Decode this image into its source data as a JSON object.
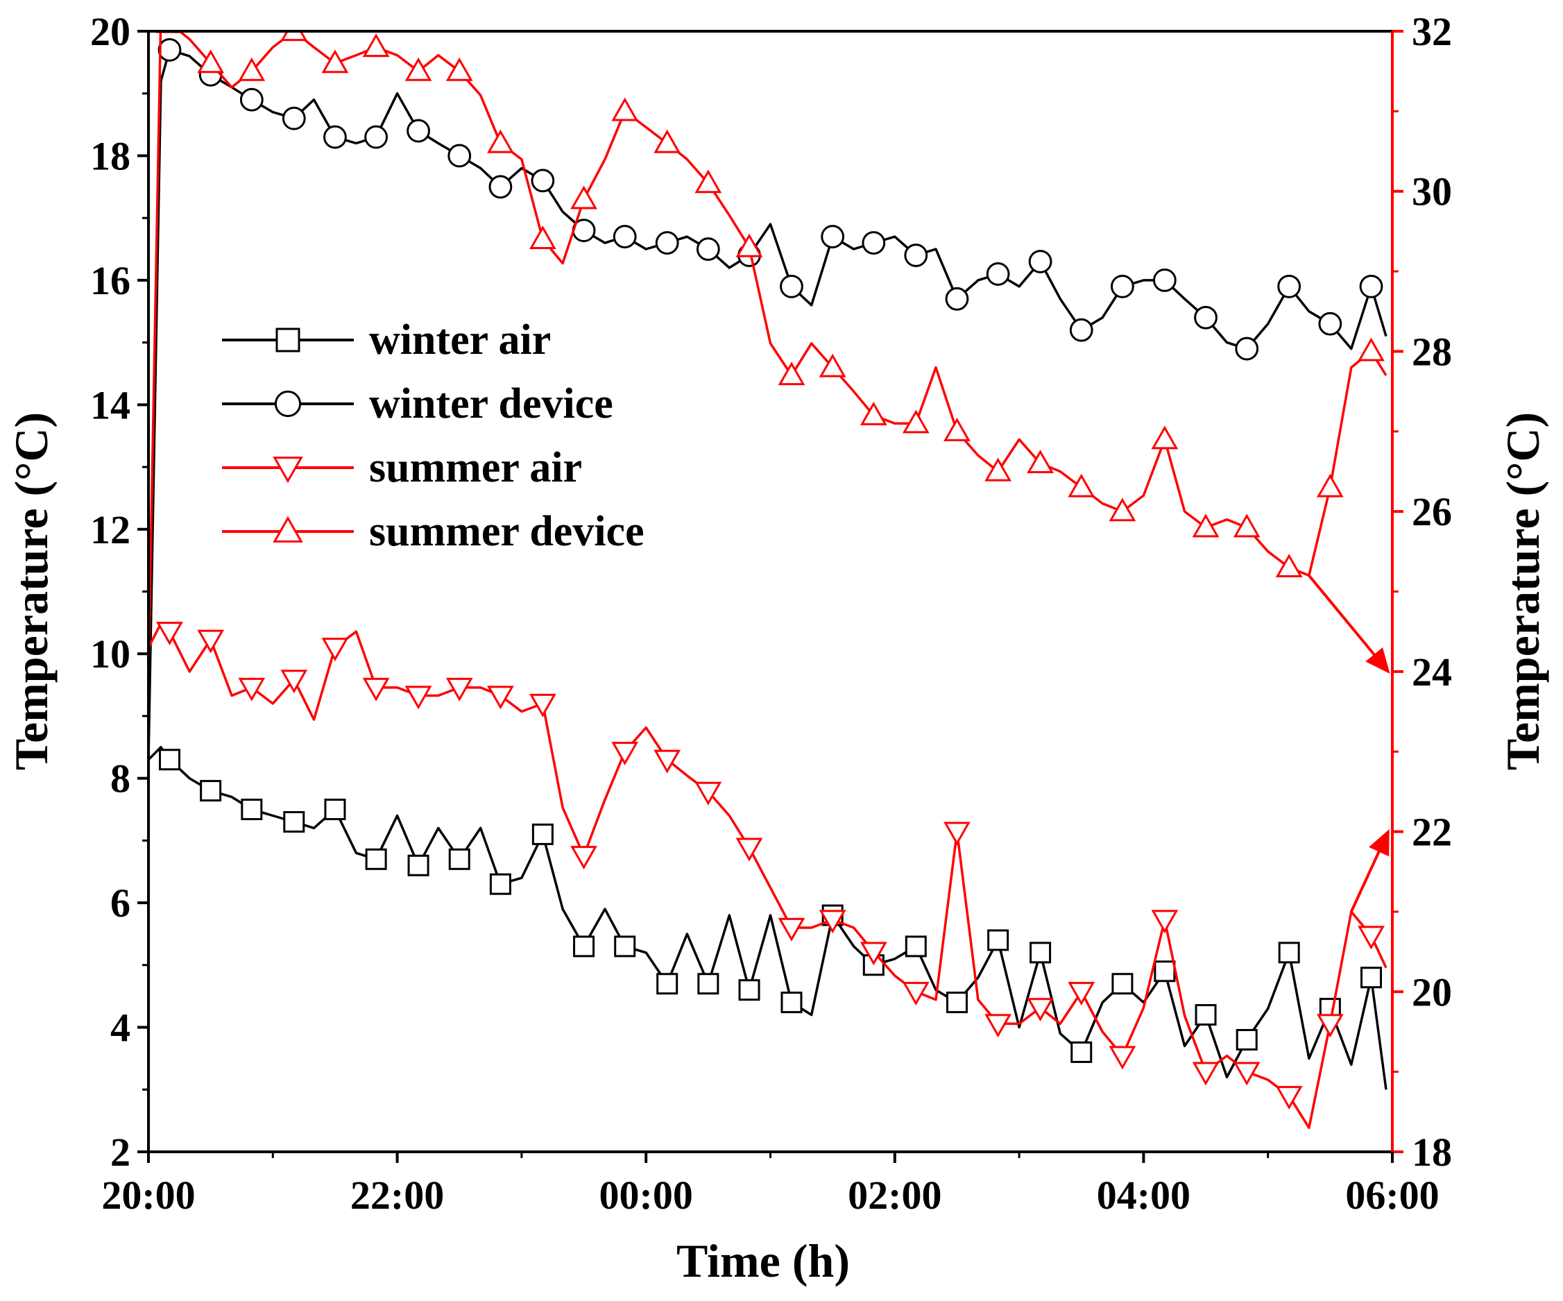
{
  "chart_data": {
    "type": "line",
    "xlabel": "Time (h)",
    "ylabel_left": "Temperature (°C)",
    "ylabel_right": "Temperature (°C)",
    "x_tick_labels": [
      "20:00",
      "22:00",
      "00:00",
      "02:00",
      "04:00",
      "06:00"
    ],
    "x_tick_hours": [
      0,
      2,
      4,
      6,
      8,
      10
    ],
    "x_range_hours": [
      0,
      10
    ],
    "y_left_range": [
      2,
      20
    ],
    "y_left_ticks": [
      2,
      4,
      6,
      8,
      10,
      12,
      14,
      16,
      18,
      20
    ],
    "y_right_range": [
      18,
      32
    ],
    "y_right_ticks": [
      18,
      20,
      22,
      24,
      26,
      28,
      30,
      32
    ],
    "colors": {
      "winter": "#000000",
      "summer": "#ff0000"
    },
    "legend": [
      {
        "label": "winter air",
        "marker": "square",
        "color": "#000000"
      },
      {
        "label": "winter device",
        "marker": "circle",
        "color": "#000000"
      },
      {
        "label": "summer air",
        "marker": "triangle-down",
        "color": "#ff0000"
      },
      {
        "label": "summer device",
        "marker": "triangle-up",
        "color": "#ff0000"
      }
    ],
    "series": [
      {
        "name": "winter air",
        "axis": "left",
        "marker": "square",
        "x": [
          0,
          0.1,
          0.17,
          0.33,
          0.5,
          0.67,
          0.83,
          1,
          1.17,
          1.33,
          1.5,
          1.67,
          1.83,
          2,
          2.17,
          2.33,
          2.5,
          2.67,
          2.83,
          3,
          3.17,
          3.33,
          3.5,
          3.67,
          3.83,
          4,
          4.17,
          4.33,
          4.5,
          4.67,
          4.83,
          5,
          5.17,
          5.33,
          5.5,
          5.67,
          5.83,
          6,
          6.17,
          6.33,
          6.5,
          6.67,
          6.83,
          7,
          7.17,
          7.33,
          7.5,
          7.67,
          7.83,
          8,
          8.17,
          8.33,
          8.5,
          8.67,
          8.83,
          9,
          9.17,
          9.33,
          9.5,
          9.67,
          9.83,
          9.95
        ],
        "y": [
          8.3,
          8.5,
          8.3,
          8.0,
          7.8,
          7.7,
          7.5,
          7.4,
          7.3,
          7.2,
          7.5,
          6.8,
          6.7,
          7.4,
          6.6,
          7.2,
          6.7,
          7.2,
          6.3,
          6.4,
          7.1,
          5.9,
          5.3,
          5.9,
          5.3,
          5.2,
          4.7,
          5.5,
          4.7,
          5.8,
          4.6,
          5.8,
          4.4,
          4.2,
          5.8,
          5.3,
          5.0,
          5.1,
          5.3,
          4.6,
          4.4,
          4.8,
          5.4,
          4.0,
          5.2,
          3.9,
          3.6,
          4.4,
          4.7,
          4.4,
          4.9,
          3.7,
          4.2,
          3.2,
          3.8,
          4.3,
          5.2,
          3.5,
          4.3,
          3.4,
          4.8,
          3.0
        ]
      },
      {
        "name": "winter device",
        "axis": "left",
        "marker": "circle",
        "x": [
          0,
          0.1,
          0.17,
          0.33,
          0.5,
          0.67,
          0.83,
          1,
          1.17,
          1.33,
          1.5,
          1.67,
          1.83,
          2,
          2.17,
          2.33,
          2.5,
          2.67,
          2.83,
          3,
          3.17,
          3.33,
          3.5,
          3.67,
          3.83,
          4,
          4.17,
          4.33,
          4.5,
          4.67,
          4.83,
          5,
          5.17,
          5.33,
          5.5,
          5.67,
          5.83,
          6,
          6.17,
          6.33,
          6.5,
          6.67,
          6.83,
          7,
          7.17,
          7.33,
          7.5,
          7.67,
          7.83,
          8,
          8.17,
          8.33,
          8.5,
          8.67,
          8.83,
          9,
          9.17,
          9.33,
          9.5,
          9.67,
          9.83,
          9.95
        ],
        "y": [
          8.3,
          19.2,
          19.7,
          19.6,
          19.3,
          19.1,
          18.9,
          18.7,
          18.6,
          18.9,
          18.3,
          18.2,
          18.3,
          19.0,
          18.4,
          18.2,
          18.0,
          17.8,
          17.5,
          17.8,
          17.6,
          17.1,
          16.8,
          16.6,
          16.7,
          16.5,
          16.6,
          16.7,
          16.5,
          16.2,
          16.4,
          16.9,
          15.9,
          15.6,
          16.7,
          16.5,
          16.6,
          16.7,
          16.4,
          16.5,
          15.7,
          16.0,
          16.1,
          15.9,
          16.3,
          15.7,
          15.2,
          15.4,
          15.9,
          16.0,
          16.0,
          15.7,
          15.4,
          15.0,
          14.9,
          15.3,
          15.9,
          15.5,
          15.3,
          14.9,
          15.9,
          15.1
        ]
      },
      {
        "name": "summer air",
        "axis": "right",
        "marker": "triangle-down",
        "x": [
          0,
          0.1,
          0.17,
          0.33,
          0.5,
          0.67,
          0.83,
          1,
          1.17,
          1.33,
          1.5,
          1.67,
          1.83,
          2,
          2.17,
          2.33,
          2.5,
          2.67,
          2.83,
          3,
          3.17,
          3.33,
          3.5,
          3.67,
          3.83,
          4,
          4.17,
          4.33,
          4.5,
          4.67,
          4.83,
          5,
          5.17,
          5.33,
          5.5,
          5.67,
          5.83,
          6,
          6.17,
          6.33,
          6.5,
          6.67,
          6.83,
          7,
          7.17,
          7.33,
          7.5,
          7.67,
          7.83,
          8,
          8.17,
          8.33,
          8.5,
          8.67,
          8.83,
          9,
          9.17,
          9.33,
          9.5,
          9.67,
          9.83,
          9.95
        ],
        "y": [
          24.3,
          24.6,
          24.5,
          24.0,
          24.4,
          23.7,
          23.8,
          23.6,
          23.9,
          23.4,
          24.3,
          24.5,
          23.8,
          23.8,
          23.7,
          23.7,
          23.8,
          23.8,
          23.7,
          23.5,
          23.6,
          22.3,
          21.7,
          22.4,
          23.0,
          23.3,
          22.9,
          22.7,
          22.5,
          22.2,
          21.8,
          21.3,
          20.8,
          20.8,
          20.9,
          20.8,
          20.5,
          20.2,
          20.0,
          19.9,
          22.0,
          19.9,
          19.6,
          19.6,
          19.8,
          19.6,
          20.0,
          19.5,
          19.2,
          19.8,
          20.9,
          19.7,
          19.0,
          19.2,
          19.0,
          18.9,
          18.7,
          18.3,
          19.6,
          21.0,
          20.7,
          20.3
        ]
      },
      {
        "name": "summer device",
        "axis": "right",
        "marker": "triangle-up",
        "x": [
          0,
          0.1,
          0.17,
          0.33,
          0.5,
          0.67,
          0.83,
          1,
          1.17,
          1.33,
          1.5,
          1.67,
          1.83,
          2,
          2.17,
          2.33,
          2.5,
          2.67,
          2.83,
          3,
          3.17,
          3.33,
          3.5,
          3.67,
          3.83,
          4,
          4.17,
          4.33,
          4.5,
          4.67,
          4.83,
          5,
          5.17,
          5.33,
          5.5,
          5.67,
          5.83,
          6,
          6.17,
          6.33,
          6.5,
          6.67,
          6.83,
          7,
          7.17,
          7.33,
          7.5,
          7.67,
          7.83,
          8,
          8.17,
          8.33,
          8.5,
          8.67,
          8.83,
          9,
          9.17,
          9.33,
          9.5,
          9.67,
          9.83,
          9.95
        ],
        "y": [
          24.0,
          32.2,
          32.1,
          31.9,
          31.6,
          31.3,
          31.5,
          31.8,
          32.0,
          31.8,
          31.6,
          31.7,
          31.8,
          31.7,
          31.5,
          31.7,
          31.5,
          31.2,
          30.6,
          30.4,
          29.4,
          29.1,
          29.9,
          30.4,
          31.0,
          30.8,
          30.6,
          30.4,
          30.1,
          29.7,
          29.3,
          28.1,
          27.7,
          28.1,
          27.8,
          27.5,
          27.2,
          27.1,
          27.1,
          27.8,
          27.0,
          26.7,
          26.5,
          26.9,
          26.6,
          26.5,
          26.3,
          26.1,
          26.0,
          26.2,
          26.9,
          26.0,
          25.8,
          25.9,
          25.8,
          25.5,
          25.3,
          25.2,
          26.3,
          27.8,
          28.0,
          27.7
        ]
      }
    ],
    "annotations": [
      {
        "type": "arrow",
        "from": {
          "x": 9.33,
          "y": 25.2,
          "axis": "right"
        },
        "to": {
          "x": 10,
          "y": 24.0,
          "axis": "right"
        },
        "meaning": "summer device -> right axis"
      },
      {
        "type": "arrow",
        "from": {
          "x": 9.67,
          "y": 21.0,
          "axis": "right"
        },
        "to": {
          "x": 10,
          "y": 22.0,
          "axis": "right"
        },
        "meaning": "summer air -> right axis"
      }
    ]
  }
}
